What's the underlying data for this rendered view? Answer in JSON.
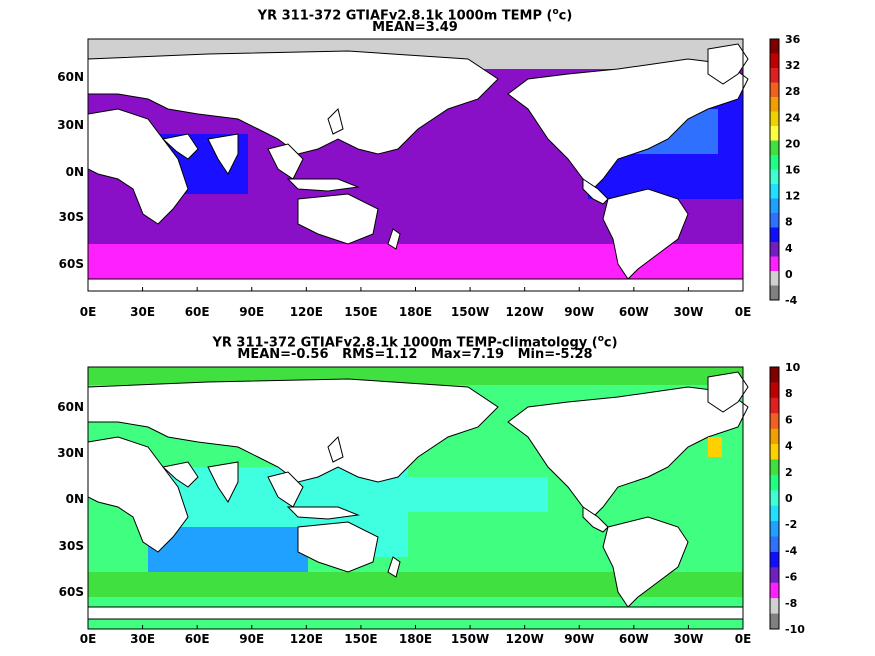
{
  "panels": [
    {
      "title_prefix": "YR 311-372 GTIAFv2.8.1k 1000m TEMP (",
      "title_unit_sup": "o",
      "title_unit_after": "c)",
      "subtitle": "MEAN=3.49",
      "lat_labels": [
        "60N",
        "30N",
        "0N",
        "30S",
        "60S"
      ],
      "lon_labels": [
        "0E",
        "30E",
        "60E",
        "90E",
        "120E",
        "150E",
        "180E",
        "150W",
        "120W",
        "90W",
        "60W",
        "30W",
        "0E"
      ],
      "colorbar_labels": [
        "36",
        "32",
        "28",
        "24",
        "20",
        "16",
        "12",
        "8",
        "4",
        "0",
        "-4"
      ],
      "colorbar_colors": [
        "#800000",
        "#c00000",
        "#e02020",
        "#f06020",
        "#f0a000",
        "#f0d000",
        "#ffff40",
        "#40e040",
        "#20ff80",
        "#40ffd0",
        "#20e0ff",
        "#20a0ff",
        "#3070ff",
        "#1010ff",
        "#7020c0",
        "#ff20ff",
        "#d0d0d0",
        "#808080"
      ]
    },
    {
      "title_prefix": "YR 311-372 GTIAFv2.8.1k 1000m TEMP-climatology (",
      "title_unit_sup": "o",
      "title_unit_after": "c)",
      "subtitle": "MEAN=-0.56   RMS=1.12   Max=7.19   Min=-5.28",
      "lat_labels": [
        "60N",
        "30N",
        "0N",
        "30S",
        "60S"
      ],
      "lon_labels": [
        "0E",
        "30E",
        "60E",
        "90E",
        "120E",
        "150E",
        "180E",
        "150W",
        "120W",
        "90W",
        "60W",
        "30W",
        "0E"
      ],
      "colorbar_labels": [
        "10",
        "8",
        "6",
        "4",
        "2",
        "0",
        "-2",
        "-4",
        "-6",
        "-8",
        "-10"
      ],
      "colorbar_colors": [
        "#800000",
        "#c00000",
        "#e02020",
        "#f06020",
        "#f0a000",
        "#ffd000",
        "#40e040",
        "#20ff80",
        "#40ffd0",
        "#20e0ff",
        "#20a0ff",
        "#3070ff",
        "#1010ff",
        "#7020c0",
        "#ff20ff",
        "#d0d0d0",
        "#808080"
      ]
    }
  ]
}
